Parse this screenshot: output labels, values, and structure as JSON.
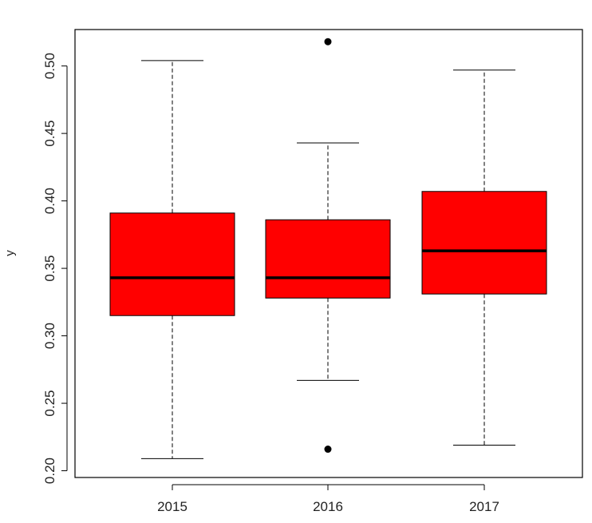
{
  "chart_data": {
    "type": "boxplot",
    "title": "",
    "xlabel": "",
    "ylabel": "y",
    "categories": [
      "2015",
      "2016",
      "2017"
    ],
    "ylim": [
      0.195,
      0.527
    ],
    "yticks": [
      0.2,
      0.25,
      0.3,
      0.35,
      0.4,
      0.45,
      0.5
    ],
    "ytick_labels": [
      "0.20",
      "0.25",
      "0.30",
      "0.35",
      "0.40",
      "0.45",
      "0.50"
    ],
    "grid": false,
    "legend": "none",
    "box_fill": "#ff0000",
    "boxes": [
      {
        "category": "2015",
        "whisker_low": 0.209,
        "q1": 0.315,
        "median": 0.343,
        "q3": 0.391,
        "whisker_high": 0.504,
        "outliers": []
      },
      {
        "category": "2016",
        "whisker_low": 0.267,
        "q1": 0.328,
        "median": 0.343,
        "q3": 0.386,
        "whisker_high": 0.443,
        "outliers": [
          0.216,
          0.518
        ]
      },
      {
        "category": "2017",
        "whisker_low": 0.219,
        "q1": 0.331,
        "median": 0.363,
        "q3": 0.407,
        "whisker_high": 0.497,
        "outliers": []
      }
    ]
  }
}
